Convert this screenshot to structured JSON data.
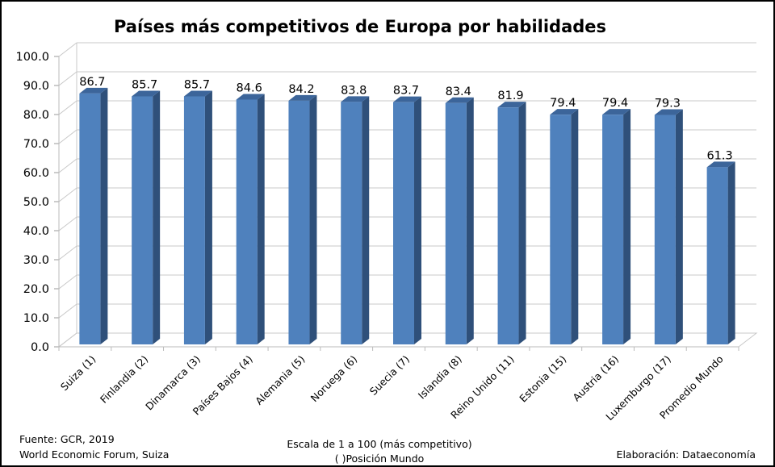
{
  "chart_data": {
    "type": "bar",
    "title": "Países más competitivos de Europa por habilidades",
    "xlabel": "",
    "ylabel": "",
    "ylim": [
      0,
      100
    ],
    "yticks": [
      "0.0",
      "10.0",
      "20.0",
      "30.0",
      "40.0",
      "50.0",
      "60.0",
      "70.0",
      "80.0",
      "90.0",
      "100.0"
    ],
    "grid": true,
    "categories": [
      "Suiza (1)",
      "Finlandia (2)",
      "Dinamarca (3)",
      "Países Bajos (4)",
      "Alemania (5)",
      "Noruega (6)",
      "Suecia (7)",
      "Islandia (8)",
      "Reino Unido (11)",
      "Estonia (15)",
      "Austria (16)",
      "Luxemburgo (17)",
      "Promedio Mundo"
    ],
    "values": [
      86.7,
      85.7,
      85.7,
      84.6,
      84.2,
      83.8,
      83.7,
      83.4,
      81.9,
      79.4,
      79.4,
      79.3,
      61.3
    ],
    "value_labels": [
      "86.7",
      "85.7",
      "85.7",
      "84.6",
      "84.2",
      "83.8",
      "83.7",
      "83.4",
      "81.9",
      "79.4",
      "79.4",
      "79.3",
      "61.3"
    ],
    "colors": {
      "front": "#4f81bd",
      "side": "#2f507a",
      "top": "#3c659a",
      "grid": "#c8c8c8"
    }
  },
  "footer": {
    "source_line1": "Fuente:  GCR, 2019",
    "source_line2": "World Economic Forum, Suiza",
    "scale_line1": "Escala de 1 a 100 (más competitivo)",
    "scale_line2": "( )Posición Mundo",
    "credit": "Elaboración: Dataeconomía"
  }
}
